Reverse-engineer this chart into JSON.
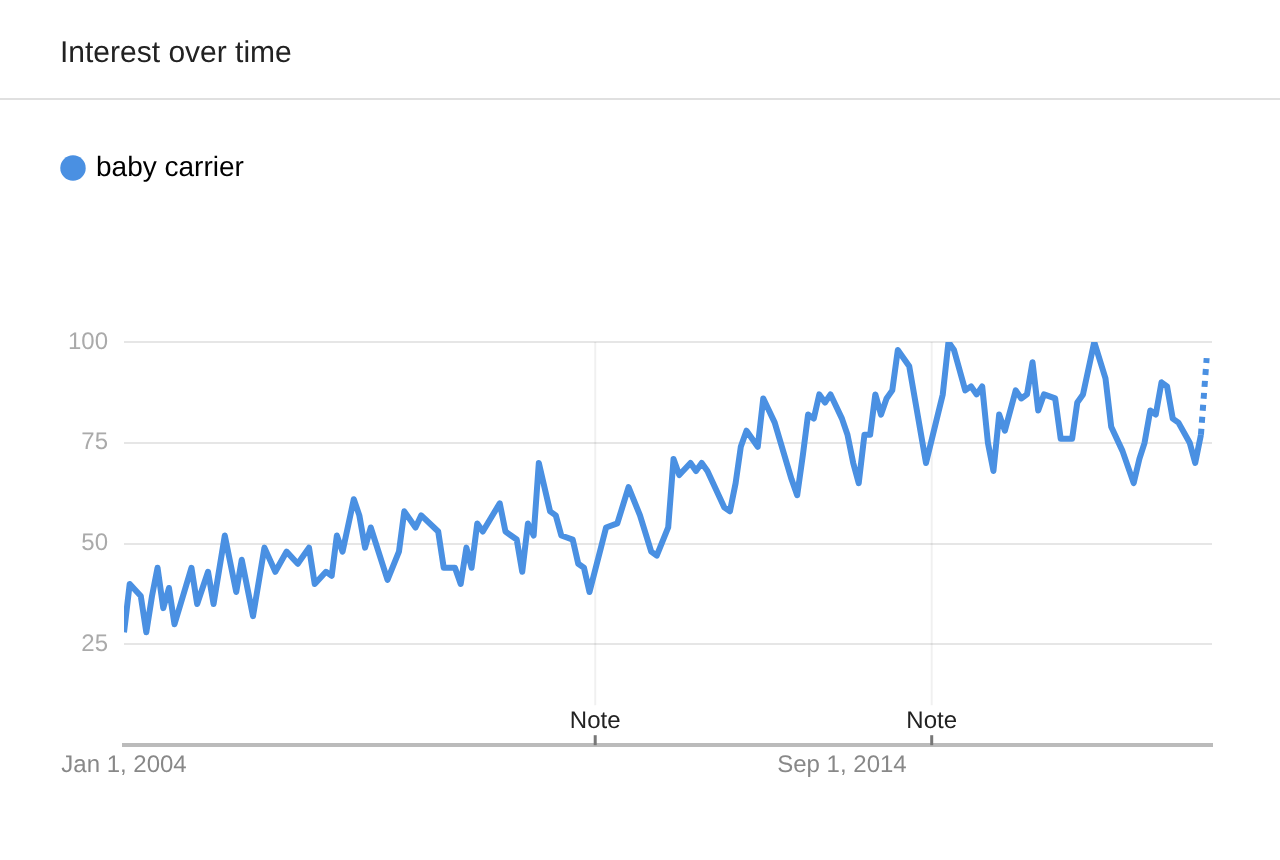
{
  "chart_data": {
    "type": "line",
    "title": "Interest over time",
    "series": [
      {
        "name": "baby carrier",
        "color": "#4a90e2",
        "x": [
          "2004-01",
          "2004-02",
          "2004-04",
          "2004-05",
          "2004-06",
          "2004-07",
          "2004-08",
          "2004-09",
          "2004-10",
          "2005-01",
          "2005-02",
          "2005-04",
          "2005-05",
          "2005-07",
          "2005-09",
          "2005-10",
          "2005-12",
          "2006-02",
          "2006-04",
          "2006-06",
          "2006-08",
          "2006-10",
          "2006-11",
          "2007-01",
          "2007-02",
          "2007-03",
          "2007-04",
          "2007-06",
          "2007-07",
          "2007-08",
          "2007-09",
          "2007-12",
          "2008-02",
          "2008-03",
          "2008-05",
          "2008-06",
          "2008-09",
          "2008-10",
          "2008-12",
          "2009-01",
          "2009-02",
          "2009-03",
          "2009-04",
          "2009-05",
          "2009-08",
          "2009-09",
          "2009-10",
          "2009-11",
          "2009-12",
          "2010-01",
          "2010-02",
          "2010-03",
          "2010-05",
          "2010-06",
          "2010-07",
          "2010-09",
          "2010-10",
          "2010-11",
          "2010-12",
          "2011-02",
          "2011-03",
          "2011-05",
          "2011-07",
          "2011-09",
          "2011-11",
          "2011-12",
          "2012-02",
          "2012-03",
          "2012-04",
          "2012-06",
          "2012-07",
          "2012-08",
          "2012-09",
          "2012-12",
          "2013-01",
          "2013-02",
          "2013-03",
          "2013-04",
          "2013-06",
          "2013-07",
          "2013-09",
          "2013-12",
          "2014-01",
          "2014-02",
          "2014-03",
          "2014-04",
          "2014-05",
          "2014-06",
          "2014-07",
          "2014-09",
          "2014-10",
          "2014-11",
          "2014-12",
          "2015-01",
          "2015-02",
          "2015-03",
          "2015-04",
          "2015-05",
          "2015-06",
          "2015-07",
          "2015-09",
          "2015-12",
          "2016-03",
          "2016-04",
          "2016-05",
          "2016-07",
          "2016-08",
          "2016-09",
          "2016-10",
          "2016-11",
          "2016-12",
          "2017-01",
          "2017-02",
          "2017-04",
          "2017-05",
          "2017-06",
          "2017-07",
          "2017-08",
          "2017-09",
          "2017-11",
          "2017-12",
          "2018-02",
          "2018-03",
          "2018-04",
          "2018-06",
          "2018-08",
          "2018-09",
          "2018-11",
          "2019-01",
          "2019-02",
          "2019-03",
          "2019-04",
          "2019-05",
          "2019-06",
          "2019-07",
          "2019-08",
          "2019-09",
          "2019-11",
          "2019-12",
          "2020-01"
        ],
        "values": [
          28,
          40,
          37,
          28,
          37,
          44,
          34,
          39,
          30,
          44,
          35,
          43,
          35,
          52,
          38,
          46,
          32,
          49,
          43,
          48,
          45,
          49,
          40,
          43,
          42,
          52,
          48,
          61,
          57,
          49,
          54,
          41,
          48,
          58,
          54,
          57,
          53,
          44,
          44,
          40,
          49,
          44,
          55,
          53,
          60,
          53,
          52,
          51,
          43,
          55,
          52,
          70,
          58,
          57,
          52,
          51,
          45,
          44,
          38,
          49,
          54,
          55,
          64,
          57,
          48,
          47,
          54,
          71,
          67,
          70,
          68,
          70,
          68,
          59,
          58,
          65,
          74,
          78,
          74,
          86,
          80,
          66,
          62,
          72,
          82,
          81,
          87,
          85,
          87,
          81,
          77,
          70,
          65,
          77,
          77,
          87,
          82,
          86,
          88,
          98,
          94,
          70,
          87,
          100,
          98,
          88,
          89,
          87,
          89,
          75,
          68,
          82,
          78,
          88,
          86,
          87,
          95,
          83,
          87,
          86,
          76,
          76,
          85,
          87,
          100,
          91,
          79,
          73,
          65,
          71,
          75,
          83,
          82,
          90,
          89,
          81,
          80,
          75,
          70,
          77
        ]
      },
      {
        "color": "#4a90e2",
        "line_style": "dotted",
        "x": [
          "2020-01",
          "2020-02"
        ],
        "values": [
          77,
          96
        ]
      }
    ],
    "xlim": [
      "2004-01",
      "2020-03"
    ],
    "xticks": [
      {
        "value": "2004-01-01",
        "label": "Jan 1, 2004"
      },
      {
        "value": "2014-09-01",
        "label": "Sep 1, 2014"
      }
    ],
    "ylim": [
      0,
      100
    ],
    "yticks": [
      25,
      50,
      75,
      100
    ],
    "grid": "y",
    "legend": "top left",
    "marker": "none",
    "line_style": "solid",
    "ref_lines": [
      {
        "axis": "x",
        "value": "2011-01",
        "label": "Note"
      },
      {
        "axis": "x",
        "value": "2016-01",
        "label": "Note"
      }
    ]
  }
}
